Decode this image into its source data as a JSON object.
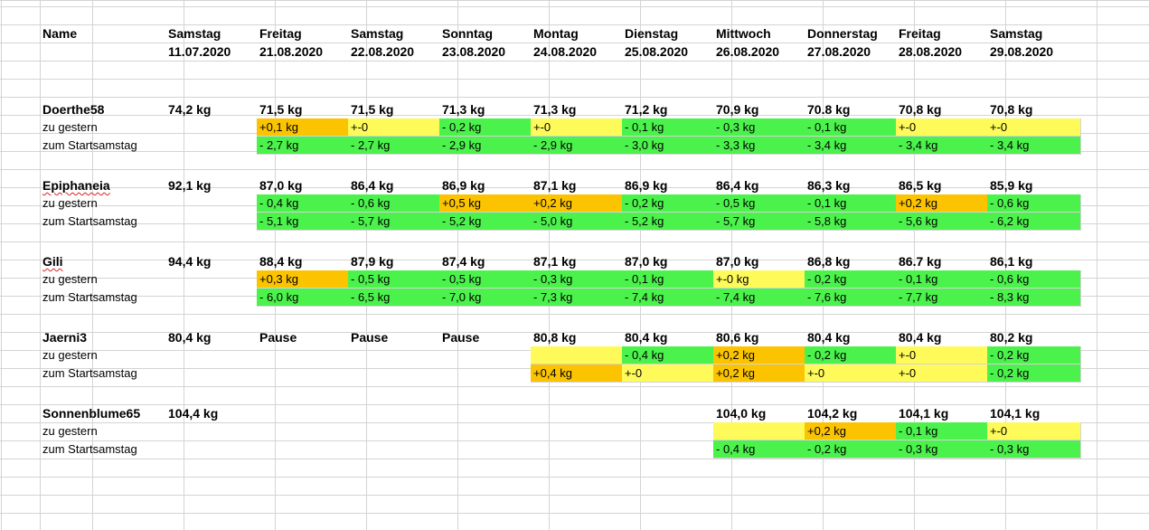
{
  "columns": [
    "Name",
    "Samstag",
    "Freitag",
    "Samstag",
    "Sonntag",
    "Montag",
    "Dienstag",
    "Mittwoch",
    "Donnerstag",
    "Freitag",
    "Samstag"
  ],
  "dates": [
    "",
    "11.07.2020",
    "21.08.2020",
    "22.08.2020",
    "23.08.2020",
    "24.08.2020",
    "25.08.2020",
    "26.08.2020",
    "27.08.2020",
    "28.08.2020",
    "29.08.2020"
  ],
  "colors": {
    "green": "#4cf24c",
    "yellow": "#fefa5a",
    "orange": "#fcc400",
    "grid": "#d4d4d4"
  },
  "people": [
    {
      "name": "Doerthe58",
      "spellcheck": false,
      "weights": [
        "74,2 kg",
        "71,5 kg",
        "71,5 kg",
        "71,3 kg",
        "71,3 kg",
        "71,2 kg",
        "70,9 kg",
        "70.8 kg",
        "70,8 kg",
        "70,8 kg"
      ],
      "gestern_label": "zu gestern",
      "gestern": [
        null,
        {
          "v": "+0,1 kg",
          "c": "orange"
        },
        {
          "v": "+-0",
          "c": "yellow"
        },
        {
          "v": "- 0,2 kg",
          "c": "green"
        },
        {
          "v": "+-0",
          "c": "yellow"
        },
        {
          "v": "- 0,1 kg",
          "c": "green"
        },
        {
          "v": "- 0,3 kg",
          "c": "green"
        },
        {
          "v": "- 0,1 kg",
          "c": "green"
        },
        {
          "v": "+-0",
          "c": "yellow"
        },
        {
          "v": "+-0",
          "c": "yellow"
        }
      ],
      "start_label": "zum Startsamstag",
      "start": [
        null,
        {
          "v": "- 2,7 kg",
          "c": "green"
        },
        {
          "v": "- 2,7 kg",
          "c": "green"
        },
        {
          "v": "- 2,9 kg",
          "c": "green"
        },
        {
          "v": "- 2,9 kg",
          "c": "green"
        },
        {
          "v": "- 3,0 kg",
          "c": "green"
        },
        {
          "v": "- 3,3 kg",
          "c": "green"
        },
        {
          "v": "- 3,4 kg",
          "c": "green"
        },
        {
          "v": "- 3,4 kg",
          "c": "green"
        },
        {
          "v": "- 3,4 kg",
          "c": "green"
        }
      ]
    },
    {
      "name": "Epiphaneia",
      "spellcheck": true,
      "weights": [
        "92,1 kg",
        "87,0 kg",
        "86,4 kg",
        "86,9 kg",
        "87,1 kg",
        "86,9 kg",
        "86,4 kg",
        "86,3 kg",
        "86,5 kg",
        "85,9 kg"
      ],
      "gestern_label": "zu gestern",
      "gestern": [
        null,
        {
          "v": "- 0,4 kg",
          "c": "green"
        },
        {
          "v": "- 0,6 kg",
          "c": "green"
        },
        {
          "v": "+0,5 kg",
          "c": "orange"
        },
        {
          "v": "+0,2 kg",
          "c": "orange"
        },
        {
          "v": "- 0,2 kg",
          "c": "green"
        },
        {
          "v": "- 0,5 kg",
          "c": "green"
        },
        {
          "v": "- 0,1 kg",
          "c": "green"
        },
        {
          "v": "+0,2 kg",
          "c": "orange"
        },
        {
          "v": "- 0,6 kg",
          "c": "green"
        }
      ],
      "start_label": "zum Startsamstag",
      "start": [
        null,
        {
          "v": "- 5,1 kg",
          "c": "green"
        },
        {
          "v": "- 5,7 kg",
          "c": "green"
        },
        {
          "v": "- 5,2 kg",
          "c": "green"
        },
        {
          "v": "- 5,0 kg",
          "c": "green"
        },
        {
          "v": "- 5,2 kg",
          "c": "green"
        },
        {
          "v": "- 5,7 kg",
          "c": "green"
        },
        {
          "v": "- 5,8 kg",
          "c": "green"
        },
        {
          "v": "- 5,6 kg",
          "c": "green"
        },
        {
          "v": "- 6,2 kg",
          "c": "green"
        }
      ]
    },
    {
      "name": "Gili",
      "spellcheck": true,
      "weights": [
        "94,4 kg",
        "88,4 kg",
        "87,9 kg",
        "87,4 kg",
        "87,1 kg",
        "87,0 kg",
        "87,0 kg",
        "86,8 kg",
        "86.7 kg",
        "86,1 kg"
      ],
      "gestern_label": "zu gestern",
      "gestern": [
        null,
        {
          "v": "+0,3 kg",
          "c": "orange"
        },
        {
          "v": "- 0,5 kg",
          "c": "green"
        },
        {
          "v": "- 0,5 kg",
          "c": "green"
        },
        {
          "v": "- 0,3 kg",
          "c": "green"
        },
        {
          "v": "- 0,1 kg",
          "c": "green"
        },
        {
          "v": "+-0 kg",
          "c": "yellow"
        },
        {
          "v": "- 0,2 kg",
          "c": "green"
        },
        {
          "v": "- 0,1 kg",
          "c": "green"
        },
        {
          "v": "- 0,6 kg",
          "c": "green"
        }
      ],
      "start_label": "zum Startsamstag",
      "start": [
        null,
        {
          "v": "- 6,0 kg",
          "c": "green"
        },
        {
          "v": "- 6,5 kg",
          "c": "green"
        },
        {
          "v": "- 7,0 kg",
          "c": "green"
        },
        {
          "v": "- 7,3 kg",
          "c": "green"
        },
        {
          "v": "- 7,4 kg",
          "c": "green"
        },
        {
          "v": "- 7,4 kg",
          "c": "green"
        },
        {
          "v": "- 7,6 kg",
          "c": "green"
        },
        {
          "v": "- 7,7 kg",
          "c": "green"
        },
        {
          "v": "- 8,3 kg",
          "c": "green"
        }
      ]
    },
    {
      "name": "Jaerni3",
      "spellcheck": false,
      "weights": [
        "80,4 kg",
        "Pause",
        "Pause",
        "Pause",
        "80,8 kg",
        "80,4 kg",
        "80,6 kg",
        "80,4 kg",
        "80,4 kg",
        "80,2 kg"
      ],
      "gestern_label": "zu gestern",
      "gestern": [
        null,
        null,
        null,
        null,
        {
          "v": "",
          "c": "yellow"
        },
        {
          "v": "- 0,4 kg",
          "c": "green"
        },
        {
          "v": "+0,2 kg",
          "c": "orange"
        },
        {
          "v": "- 0,2 kg",
          "c": "green"
        },
        {
          "v": "+-0",
          "c": "yellow"
        },
        {
          "v": "- 0,2 kg",
          "c": "green"
        }
      ],
      "start_label": "zum Startsamstag",
      "start": [
        null,
        null,
        null,
        null,
        {
          "v": "+0,4 kg",
          "c": "orange"
        },
        {
          "v": "+-0",
          "c": "yellow"
        },
        {
          "v": "+0,2 kg",
          "c": "orange"
        },
        {
          "v": "+-0",
          "c": "yellow"
        },
        {
          "v": "+-0",
          "c": "yellow"
        },
        {
          "v": "- 0,2 kg",
          "c": "green"
        }
      ]
    },
    {
      "name": "Sonnenblume65",
      "spellcheck": false,
      "weights": [
        "104,4 kg",
        "",
        "",
        "",
        "",
        "",
        "104,0 kg",
        "104,2 kg",
        "104,1 kg",
        "104,1 kg"
      ],
      "gestern_label": "zu gestern",
      "gestern": [
        null,
        null,
        null,
        null,
        null,
        null,
        {
          "v": "",
          "c": "yellow"
        },
        {
          "v": "+0,2 kg",
          "c": "orange"
        },
        {
          "v": "- 0,1 kg",
          "c": "green"
        },
        {
          "v": "+-0",
          "c": "yellow"
        }
      ],
      "start_label": "zum Startsamstag",
      "start": [
        null,
        null,
        null,
        null,
        null,
        null,
        {
          "v": "- 0,4 kg",
          "c": "green"
        },
        {
          "v": "- 0,2 kg",
          "c": "green"
        },
        {
          "v": "- 0,3 kg",
          "c": "green"
        },
        {
          "v": "- 0,3 kg",
          "c": "green"
        }
      ]
    }
  ]
}
